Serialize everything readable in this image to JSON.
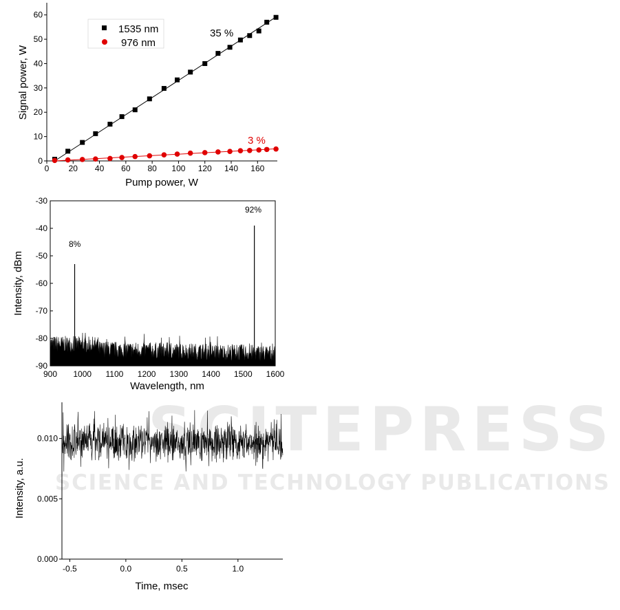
{
  "watermark": {
    "line1": "SCITEPRESS",
    "line2": "SCIENCE AND TECHNOLOGY PUBLICATIONS",
    "color": "#e6e6e6"
  },
  "chart_data": [
    {
      "type": "scatter",
      "xlabel": "Pump power, W",
      "ylabel": "Signal power, W",
      "xlim": [
        0,
        175
      ],
      "ylim": [
        0,
        65
      ],
      "xticks": [
        0,
        20,
        40,
        60,
        80,
        100,
        120,
        140,
        160
      ],
      "yticks": [
        0,
        10,
        20,
        30,
        40,
        50,
        60
      ],
      "legend_position": "top-left",
      "grid": false,
      "series": [
        {
          "name": "1535 nm",
          "marker": "square",
          "color": "#000000",
          "x": [
            6,
            16,
            27,
            37,
            48,
            57,
            67,
            78,
            89,
            99,
            109,
            120,
            130,
            139,
            147,
            154,
            161,
            167,
            174
          ],
          "y": [
            0.7,
            4,
            7.6,
            11.2,
            15.1,
            18.2,
            21,
            25.5,
            29.8,
            33.3,
            36.5,
            40,
            44.2,
            46.7,
            49.7,
            51.5,
            53.4,
            57,
            59
          ],
          "fit": [
            [
              6,
              0
            ],
            [
              175,
              59.5
            ]
          ],
          "annotation": "35 %"
        },
        {
          "name": "976 nm",
          "marker": "circle",
          "color": "#e00000",
          "x": [
            6,
            16,
            27,
            37,
            48,
            57,
            67,
            78,
            89,
            99,
            109,
            120,
            130,
            139,
            147,
            154,
            161,
            167,
            174
          ],
          "y": [
            0.2,
            0.4,
            0.6,
            0.8,
            1,
            1.4,
            1.8,
            2.1,
            2.5,
            2.8,
            3.2,
            3.4,
            3.7,
            3.9,
            4.2,
            4.3,
            4.5,
            4.7,
            4.9
          ],
          "fit": [
            [
              6,
              0
            ],
            [
              175,
              5
            ]
          ],
          "annotation": "3 %"
        }
      ]
    },
    {
      "type": "line",
      "xlabel": "Wavelength, nm",
      "ylabel": "Intensity, dBm",
      "xlim": [
        900,
        1600
      ],
      "ylim": [
        -90,
        -30
      ],
      "xticks": [
        900,
        1000,
        1100,
        1200,
        1300,
        1400,
        1500,
        1600
      ],
      "yticks": [
        -90,
        -80,
        -70,
        -60,
        -50,
        -40,
        -30
      ],
      "grid": false,
      "noise_floor": {
        "min": -90,
        "max": -78
      },
      "peaks": [
        {
          "x": 976,
          "y": -53,
          "annotation": "8%"
        },
        {
          "x": 1535,
          "y": -39,
          "annotation": "92%"
        }
      ]
    },
    {
      "type": "line",
      "xlabel": "Time, msec",
      "ylabel": "Intensity, a.u.",
      "xlim": [
        -0.57,
        1.4
      ],
      "ylim": [
        0,
        0.013
      ],
      "xticks": [
        "-0.5",
        "0.0",
        "0.5",
        "1.0"
      ],
      "yticks": [
        "0.000",
        "0.005",
        "0.010"
      ],
      "grid": false,
      "signal": {
        "mean": 0.0097,
        "min": 0.0072,
        "max": 0.0125
      }
    }
  ]
}
